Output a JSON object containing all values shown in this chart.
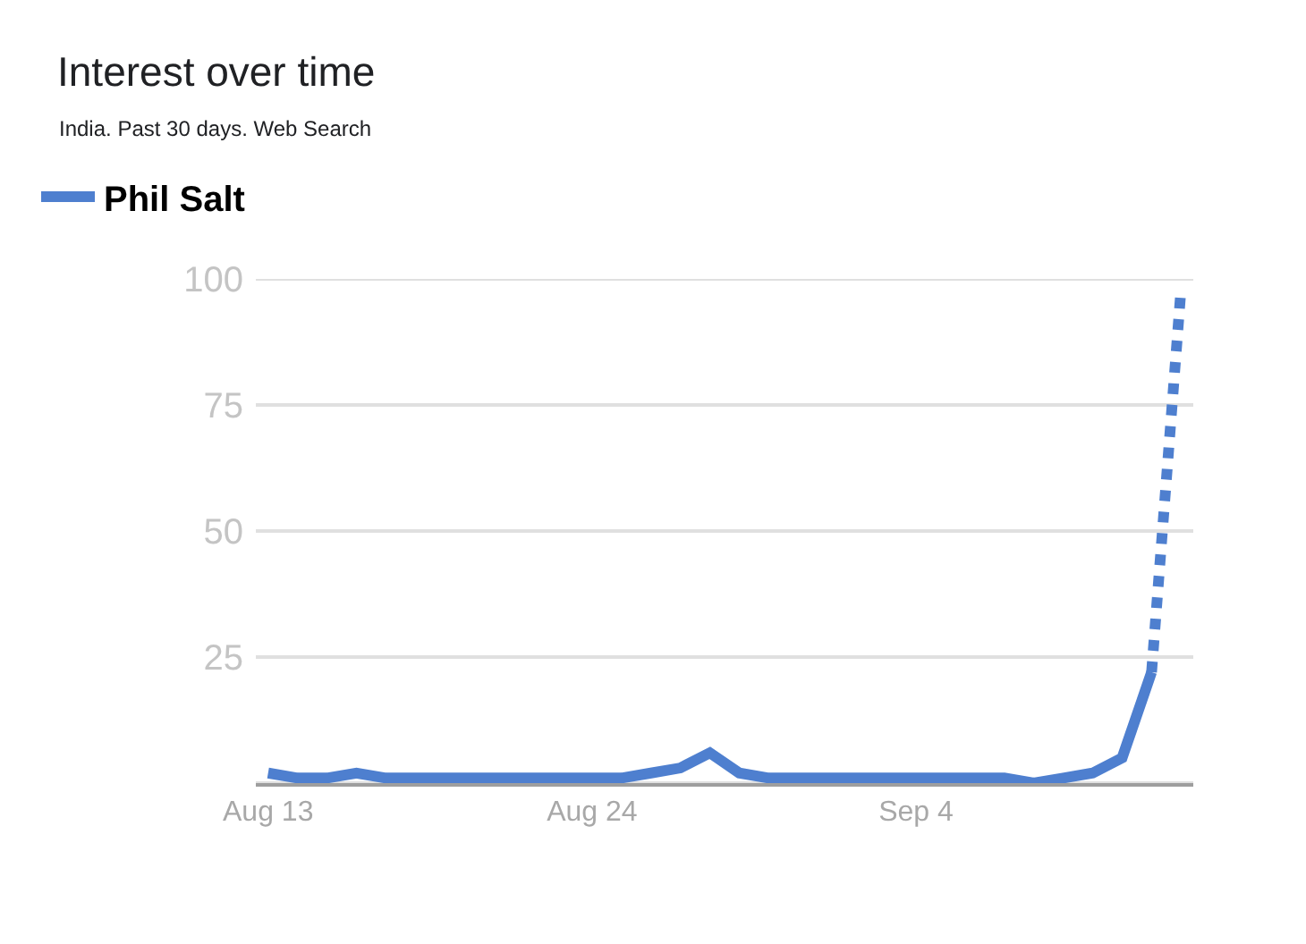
{
  "chart_data": {
    "type": "line",
    "title": "Interest over time",
    "subtitle": "India. Past 30 days. Web Search",
    "x": [
      "--08-13",
      "--08-14",
      "--08-15",
      "--08-16",
      "--08-17",
      "--08-18",
      "--08-19",
      "--08-20",
      "--08-21",
      "--08-22",
      "--08-23",
      "--08-24",
      "--08-25",
      "--08-26",
      "--08-27",
      "--08-28",
      "--08-29",
      "--08-30",
      "--08-31",
      "--09-01",
      "--09-02",
      "--09-03",
      "--09-04",
      "--09-05",
      "--09-06",
      "--09-07",
      "--09-08",
      "--09-09",
      "--09-10",
      "--09-11",
      "--09-12",
      "--09-13"
    ],
    "series": [
      {
        "name": "Phil Salt",
        "color": "#4e7fcf",
        "values": [
          2,
          1,
          1,
          2,
          1,
          1,
          1,
          1,
          1,
          1,
          1,
          1,
          1,
          2,
          3,
          6,
          2,
          1,
          1,
          1,
          1,
          1,
          1,
          1,
          1,
          1,
          0,
          1,
          2,
          5,
          22,
          null
        ]
      },
      {
        "color": "#4e7fcf",
        "line_style": "dotted",
        "values": [
          null,
          null,
          null,
          null,
          null,
          null,
          null,
          null,
          null,
          null,
          null,
          null,
          null,
          null,
          null,
          null,
          null,
          null,
          null,
          null,
          null,
          null,
          null,
          null,
          null,
          null,
          null,
          null,
          null,
          null,
          22,
          98
        ]
      }
    ],
    "xlim": [
      "--08-12T14:00",
      "--09-13T10:00"
    ],
    "xticks": [
      {
        "value": "--08-13",
        "label": "Aug 13"
      },
      {
        "value": "--08-24",
        "label": "Aug 24"
      },
      {
        "value": "--09-04",
        "label": "Sep 4"
      }
    ],
    "ylim": [
      0,
      100
    ],
    "yticks": [
      {
        "value": 0,
        "label": null
      },
      25,
      50,
      75,
      100
    ],
    "grid": "y",
    "legend": "top left",
    "line_style": "solid"
  }
}
